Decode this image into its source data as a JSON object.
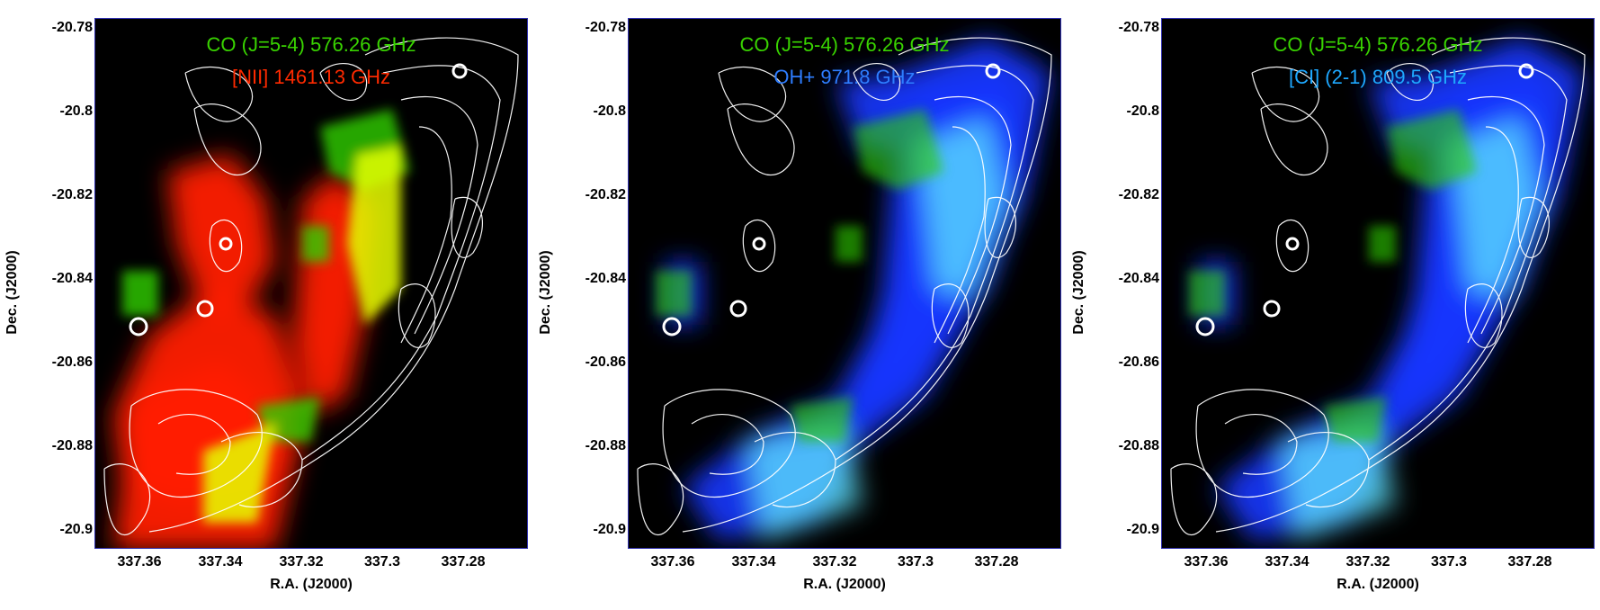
{
  "axes": {
    "xlabel": "R.A. (J2000)",
    "ylabel": "Dec. (J2000)",
    "xticks": [
      "337.36",
      "337.34",
      "337.32",
      "337.3",
      "337.28"
    ],
    "yticks": [
      "-20.78",
      "-20.8",
      "-20.82",
      "-20.84",
      "-20.86",
      "-20.88",
      "-20.9"
    ]
  },
  "panels": [
    {
      "legend1": "CO (J=5-4) 576.26 GHz",
      "legend2": "[NII] 1461.13 GHz",
      "colors": {
        "legend1": "#39d400",
        "legend2": "#ff2a00",
        "line2": "#ff1a00"
      }
    },
    {
      "legend1": "CO (J=5-4) 576.26 GHz",
      "legend2": "OH+ 971.8 GHz",
      "colors": {
        "legend1": "#39d400",
        "legend2": "#2e7dff",
        "line2": "#1636ff"
      }
    },
    {
      "legend1": "CO (J=5-4) 576.26 GHz",
      "legend2": "[CI] (2-1) 809.5 GHz",
      "colors": {
        "legend1": "#39d400",
        "legend2": "#1ea8ff",
        "line2": "#1636ff"
      }
    }
  ]
}
